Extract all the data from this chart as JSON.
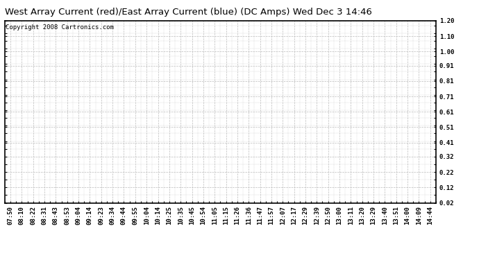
{
  "title": "West Array Current (red)/East Array Current (blue) (DC Amps) Wed Dec 3 14:46",
  "copyright_text": "Copyright 2008 Cartronics.com",
  "yticks": [
    0.02,
    0.12,
    0.22,
    0.32,
    0.41,
    0.51,
    0.61,
    0.71,
    0.81,
    0.91,
    1.0,
    1.1,
    1.2
  ],
  "ymin": 0.02,
  "ymax": 1.2,
  "xtick_labels": [
    "07:50",
    "08:10",
    "08:22",
    "08:31",
    "08:43",
    "08:53",
    "09:04",
    "09:14",
    "09:23",
    "09:34",
    "09:44",
    "09:55",
    "10:04",
    "10:14",
    "10:25",
    "10:35",
    "10:45",
    "10:54",
    "11:05",
    "11:15",
    "11:26",
    "11:36",
    "11:47",
    "11:57",
    "12:07",
    "12:17",
    "12:29",
    "12:39",
    "12:50",
    "13:00",
    "13:11",
    "13:20",
    "13:29",
    "13:40",
    "13:51",
    "14:00",
    "14:09",
    "14:44"
  ],
  "background_color": "#ffffff",
  "plot_bg_color": "#ffffff",
  "grid_color": "#bbbbbb",
  "title_fontsize": 9.5,
  "copyright_fontsize": 6.5,
  "tick_fontsize": 6.5,
  "border_color": "#000000",
  "fig_width": 6.9,
  "fig_height": 3.75,
  "dpi": 100
}
